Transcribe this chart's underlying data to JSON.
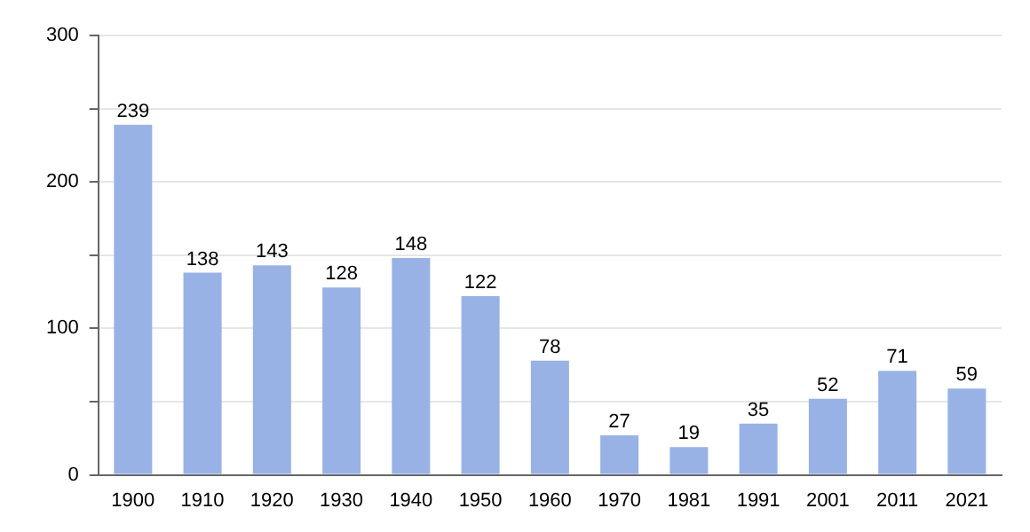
{
  "chart_data": {
    "type": "bar",
    "categories": [
      "1900",
      "1910",
      "1920",
      "1930",
      "1940",
      "1950",
      "1960",
      "1970",
      "1981",
      "1991",
      "2001",
      "2011",
      "2021"
    ],
    "values": [
      239,
      138,
      143,
      128,
      148,
      122,
      78,
      27,
      19,
      35,
      52,
      71,
      59
    ],
    "color": "#98b2e6",
    "ylim": [
      0,
      300
    ],
    "yticks": [
      0,
      {
        "value": 50,
        "label": null
      },
      100,
      {
        "value": 150,
        "label": null
      },
      200,
      {
        "value": 250,
        "label": null
      },
      300
    ],
    "grid": "y",
    "data_labels": true,
    "legend": false
  }
}
